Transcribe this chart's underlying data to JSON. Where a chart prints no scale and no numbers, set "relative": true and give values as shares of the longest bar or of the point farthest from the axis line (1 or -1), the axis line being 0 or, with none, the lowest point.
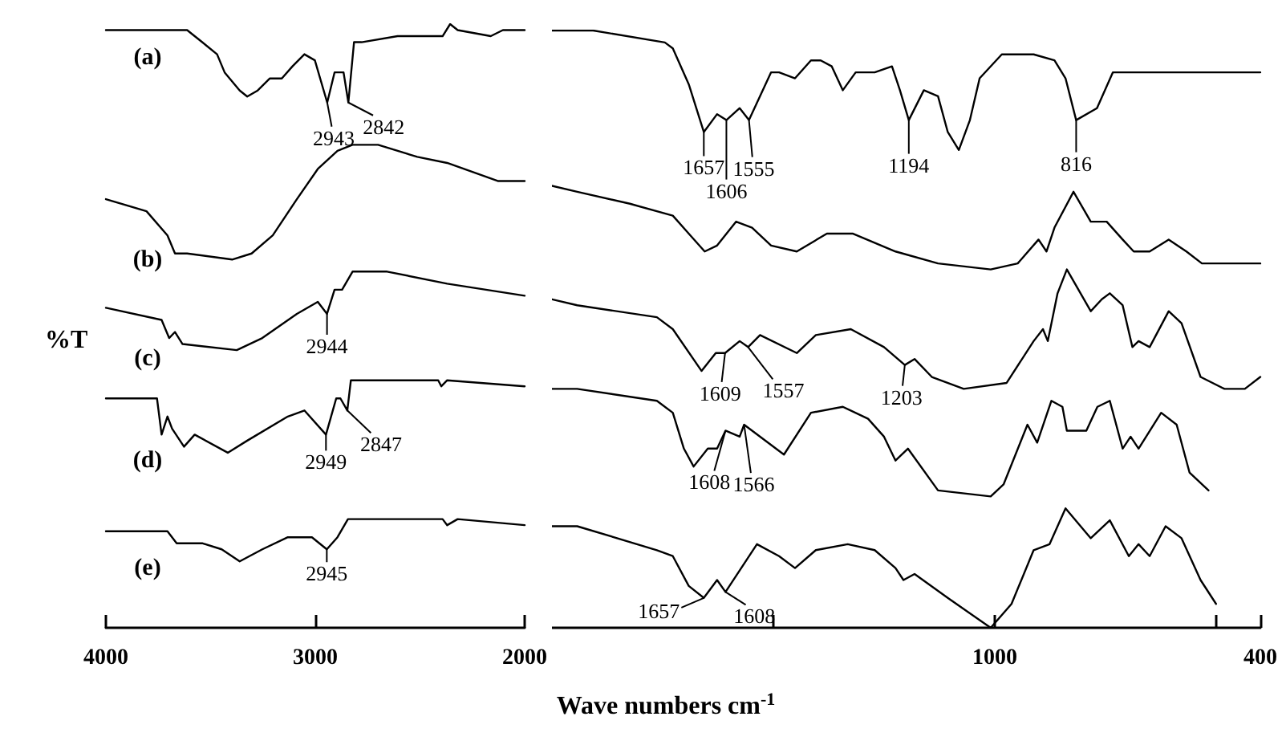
{
  "chart_data": [
    {
      "type": "line",
      "relative": true,
      "ylabel": "%T",
      "xlim": [
        4000,
        2000
      ],
      "xticks": [
        4000,
        3000,
        2000
      ],
      "marker": "none",
      "line_style": "solid",
      "series": [
        {
          "name": "(a)",
          "color": "#000000",
          "x": [
            4000,
            3612,
            3540,
            3469,
            3433,
            3361,
            3325,
            3275,
            3217,
            3160,
            3109,
            3052,
            3002,
            2943,
            2908,
            2865,
            2842,
            2815,
            2779,
            2607,
            2392,
            2356,
            2320,
            2162,
            2104,
            2000
          ],
          "values": [
            0.99,
            0.99,
            0.97,
            0.95,
            0.92,
            0.89,
            0.88,
            0.89,
            0.91,
            0.91,
            0.93,
            0.95,
            0.94,
            0.87,
            0.92,
            0.92,
            0.87,
            0.97,
            0.97,
            0.98,
            0.98,
            1.0,
            0.99,
            0.98,
            0.99,
            0.99
          ]
        },
        {
          "name": "(b)",
          "color": "#000000",
          "x": [
            4000,
            3806,
            3706,
            3670,
            3612,
            3397,
            3304,
            3203,
            3088,
            2988,
            2894,
            2822,
            2700,
            2513,
            2370,
            2126,
            2000
          ],
          "values": [
            0.71,
            0.69,
            0.65,
            0.62,
            0.62,
            0.61,
            0.62,
            0.65,
            0.71,
            0.76,
            0.79,
            0.8,
            0.8,
            0.78,
            0.77,
            0.74,
            0.74
          ]
        },
        {
          "name": "(c)",
          "color": "#000000",
          "x": [
            4000,
            3734,
            3698,
            3670,
            3634,
            3375,
            3253,
            3088,
            2988,
            2944,
            2908,
            2872,
            2822,
            2657,
            2370,
            2000
          ],
          "values": [
            0.53,
            0.51,
            0.48,
            0.49,
            0.47,
            0.46,
            0.48,
            0.52,
            0.54,
            0.52,
            0.56,
            0.56,
            0.59,
            0.59,
            0.57,
            0.55
          ]
        },
        {
          "name": "(d)",
          "color": "#000000",
          "x": [
            4000,
            3756,
            3734,
            3706,
            3684,
            3627,
            3576,
            3418,
            3325,
            3131,
            3052,
            2949,
            2900,
            2880,
            2847,
            2830,
            2700,
            2413,
            2398,
            2370,
            2000
          ],
          "values": [
            0.38,
            0.38,
            0.32,
            0.35,
            0.33,
            0.3,
            0.32,
            0.29,
            0.31,
            0.35,
            0.36,
            0.32,
            0.38,
            0.38,
            0.36,
            0.41,
            0.41,
            0.41,
            0.4,
            0.41,
            0.4
          ]
        },
        {
          "name": "(e)",
          "color": "#000000",
          "x": [
            4000,
            3706,
            3684,
            3662,
            3591,
            3540,
            3447,
            3361,
            3253,
            3131,
            3016,
            2945,
            2894,
            2844,
            2392,
            2370,
            2320,
            2000
          ],
          "values": [
            0.16,
            0.16,
            0.15,
            0.14,
            0.14,
            0.14,
            0.13,
            0.11,
            0.13,
            0.15,
            0.15,
            0.13,
            0.15,
            0.18,
            0.18,
            0.17,
            0.18,
            0.17
          ]
        }
      ],
      "annotations": [
        {
          "text": "2943",
          "x": 2943,
          "y": 0.87
        },
        {
          "text": "2842",
          "x": 2842,
          "y": 0.87
        },
        {
          "text": "2944",
          "x": 2944,
          "y": 0.52
        },
        {
          "text": "2949",
          "x": 2949,
          "y": 0.32
        },
        {
          "text": "2847",
          "x": 2847,
          "y": 0.36
        },
        {
          "text": "2945",
          "x": 2945,
          "y": 0.13
        }
      ]
    },
    {
      "type": "line",
      "relative": true,
      "xlabel": "Wave numbers cm$^{-1}$",
      "xlim": [
        2000,
        400
      ],
      "xticks": [
        {
          "value": 1500,
          "label": null
        },
        1000,
        {
          "value": 500,
          "label": null
        },
        400
      ],
      "tick_labels": "x",
      "marker": "none",
      "line_style": "solid",
      "series": [
        {
          "color": "#000000",
          "x": [
            2000,
            1907,
            1745,
            1727,
            1691,
            1657,
            1627,
            1606,
            1576,
            1555,
            1505,
            1487,
            1451,
            1415,
            1393,
            1368,
            1343,
            1314,
            1271,
            1232,
            1214,
            1194,
            1160,
            1128,
            1106,
            1081,
            1056,
            1034,
            984,
            912,
            865,
            840,
            816,
            769,
            733,
            675,
            553,
            506,
            460,
            424,
            400
          ],
          "values": [
            1.0,
            1.0,
            0.98,
            0.97,
            0.91,
            0.83,
            0.86,
            0.85,
            0.87,
            0.85,
            0.93,
            0.93,
            0.92,
            0.95,
            0.95,
            0.94,
            0.9,
            0.93,
            0.93,
            0.94,
            0.9,
            0.85,
            0.9,
            0.89,
            0.83,
            0.8,
            0.85,
            0.92,
            0.96,
            0.96,
            0.95,
            0.92,
            0.85,
            0.87,
            0.93,
            0.93,
            0.93,
            0.93,
            0.93,
            0.93,
            0.93
          ]
        },
        {
          "color": "#000000",
          "x": [
            2000,
            1943,
            1824,
            1727,
            1691,
            1655,
            1627,
            1584,
            1548,
            1505,
            1447,
            1379,
            1321,
            1224,
            1128,
            1009,
            948,
            901,
            883,
            865,
            822,
            783,
            747,
            711,
            686,
            650,
            607,
            567,
            532,
            400
          ],
          "values": [
            0.74,
            0.73,
            0.71,
            0.69,
            0.66,
            0.63,
            0.64,
            0.68,
            0.67,
            0.64,
            0.63,
            0.66,
            0.66,
            0.63,
            0.61,
            0.6,
            0.61,
            0.65,
            0.63,
            0.67,
            0.73,
            0.68,
            0.68,
            0.65,
            0.63,
            0.63,
            0.65,
            0.63,
            0.61,
            0.61
          ]
        },
        {
          "color": "#000000",
          "x": [
            2000,
            1943,
            1763,
            1727,
            1662,
            1630,
            1609,
            1576,
            1557,
            1530,
            1447,
            1404,
            1325,
            1250,
            1203,
            1181,
            1142,
            1070,
            973,
            912,
            891,
            880,
            858,
            837,
            783,
            758,
            740,
            711,
            689,
            675,
            650,
            607,
            578,
            535,
            481,
            435,
            400
          ],
          "values": [
            0.55,
            0.54,
            0.52,
            0.5,
            0.43,
            0.46,
            0.46,
            0.48,
            0.47,
            0.49,
            0.46,
            0.49,
            0.5,
            0.47,
            0.44,
            0.45,
            0.42,
            0.4,
            0.41,
            0.48,
            0.5,
            0.48,
            0.56,
            0.6,
            0.53,
            0.55,
            0.56,
            0.54,
            0.47,
            0.48,
            0.47,
            0.53,
            0.51,
            0.42,
            0.4,
            0.4,
            0.42
          ]
        },
        {
          "color": "#000000",
          "x": [
            2000,
            1943,
            1763,
            1727,
            1702,
            1680,
            1648,
            1627,
            1608,
            1576,
            1566,
            1476,
            1415,
            1343,
            1286,
            1250,
            1224,
            1196,
            1128,
            1009,
            980,
            926,
            904,
            872,
            847,
            837,
            793,
            768,
            740,
            711,
            693,
            675,
            624,
            589,
            560,
            517
          ],
          "values": [
            0.4,
            0.4,
            0.38,
            0.36,
            0.3,
            0.27,
            0.3,
            0.3,
            0.33,
            0.32,
            0.34,
            0.29,
            0.36,
            0.37,
            0.35,
            0.32,
            0.28,
            0.3,
            0.23,
            0.22,
            0.24,
            0.34,
            0.31,
            0.38,
            0.37,
            0.33,
            0.33,
            0.37,
            0.38,
            0.3,
            0.32,
            0.3,
            0.36,
            0.34,
            0.26,
            0.23
          ]
        },
        {
          "color": "#000000",
          "x": [
            2000,
            1943,
            1763,
            1727,
            1691,
            1657,
            1627,
            1608,
            1537,
            1487,
            1451,
            1404,
            1332,
            1271,
            1224,
            1206,
            1181,
            1106,
            1009,
            962,
            912,
            876,
            840,
            783,
            740,
            697,
            675,
            650,
            614,
            578,
            535,
            500
          ],
          "values": [
            0.17,
            0.17,
            0.13,
            0.12,
            0.07,
            0.05,
            0.08,
            0.06,
            0.14,
            0.12,
            0.1,
            0.13,
            0.14,
            0.13,
            0.1,
            0.08,
            0.09,
            0.05,
            0,
            0.04,
            0.13,
            0.14,
            0.2,
            0.15,
            0.18,
            0.12,
            0.14,
            0.12,
            0.17,
            0.15,
            0.08,
            0.04
          ]
        }
      ],
      "annotations": [
        {
          "text": "1657",
          "x": 1657,
          "y": 0.83
        },
        {
          "text": "1606",
          "x": 1606,
          "y": 0.85
        },
        {
          "text": "1555",
          "x": 1555,
          "y": 0.85
        },
        {
          "text": "1194",
          "x": 1194,
          "y": 0.85
        },
        {
          "text": "816",
          "x": 816,
          "y": 0.85
        },
        {
          "text": "1609",
          "x": 1609,
          "y": 0.46
        },
        {
          "text": "1557",
          "x": 1557,
          "y": 0.47
        },
        {
          "text": "1203",
          "x": 1203,
          "y": 0.44
        },
        {
          "text": "1608",
          "x": 1608,
          "y": 0.33
        },
        {
          "text": "1566",
          "x": 1566,
          "y": 0.34
        },
        {
          "text": "1657",
          "x": 1657,
          "y": 0.05
        },
        {
          "text": "1608",
          "x": 1608,
          "y": 0.06
        }
      ]
    }
  ]
}
